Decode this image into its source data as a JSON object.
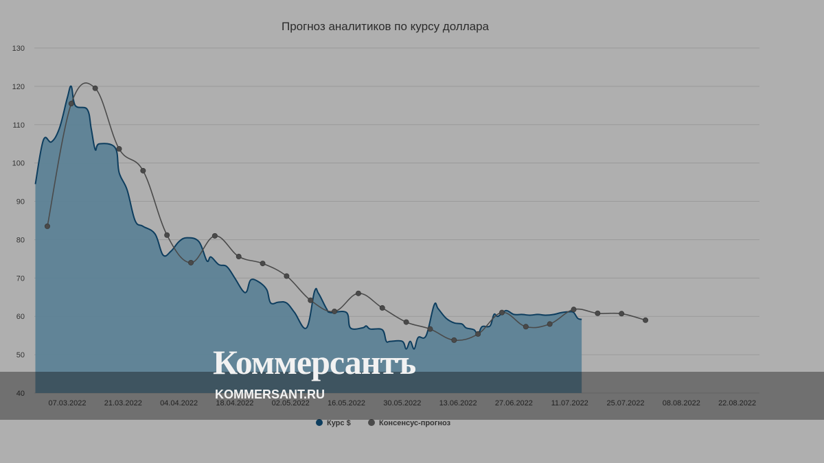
{
  "chart_data": {
    "type": "area",
    "title": "Прогноз аналитиков по курсу доллара",
    "ylim": [
      40,
      130
    ],
    "y_ticks": [
      "40",
      "50",
      "60",
      "70",
      "80",
      "90",
      "100",
      "110",
      "120",
      "130"
    ],
    "x_ticks": [
      "07.03.2022",
      "21.03.2022",
      "04.04.2022",
      "18.04.2022",
      "02.05.2022",
      "16.05.2022",
      "30.05.2022",
      "13.06.2022",
      "27.06.2022",
      "11.07.2022",
      "25.07.2022",
      "08.08.2022",
      "22.08.2022"
    ],
    "x_units": "days from 07.03.2022",
    "grid": true,
    "legend_position": "bottom",
    "series": [
      {
        "name": "Курс $",
        "kind": "area",
        "color": "#0d3d5e",
        "points": [
          [
            -8,
            94.5
          ],
          [
            -6,
            106
          ],
          [
            -4,
            105.5
          ],
          [
            -2,
            109
          ],
          [
            0,
            117
          ],
          [
            1,
            120
          ],
          [
            2,
            115
          ],
          [
            5,
            114
          ],
          [
            6,
            109
          ],
          [
            7,
            103.5
          ],
          [
            8,
            105
          ],
          [
            12,
            104
          ],
          [
            13,
            97.5
          ],
          [
            15,
            93
          ],
          [
            17,
            85
          ],
          [
            19,
            83.5
          ],
          [
            22,
            81.5
          ],
          [
            24,
            76
          ],
          [
            26,
            77
          ],
          [
            28,
            79.5
          ],
          [
            30,
            80.5
          ],
          [
            33,
            79.5
          ],
          [
            35,
            74.5
          ],
          [
            36,
            75.5
          ],
          [
            38,
            73.5
          ],
          [
            40,
            73
          ],
          [
            42,
            70
          ],
          [
            44,
            66.7
          ],
          [
            45,
            66.5
          ],
          [
            46,
            69.5
          ],
          [
            48,
            69
          ],
          [
            50,
            67
          ],
          [
            51,
            63.5
          ],
          [
            53,
            63.7
          ],
          [
            55,
            63.5
          ],
          [
            57,
            61
          ],
          [
            60,
            57
          ],
          [
            62,
            66.5
          ],
          [
            63,
            66
          ],
          [
            65,
            62
          ],
          [
            66,
            61
          ],
          [
            70,
            61
          ],
          [
            71,
            57
          ],
          [
            74,
            57
          ],
          [
            75,
            57.5
          ],
          [
            76,
            56.7
          ],
          [
            79,
            56.5
          ],
          [
            80,
            53.5
          ],
          [
            81,
            53.5
          ],
          [
            84,
            53.5
          ],
          [
            85,
            51.5
          ],
          [
            86,
            53.5
          ],
          [
            87,
            51.5
          ],
          [
            88,
            54.5
          ],
          [
            90,
            55
          ],
          [
            92,
            63
          ],
          [
            93,
            62
          ],
          [
            95,
            59.5
          ],
          [
            97,
            58.3
          ],
          [
            99,
            58
          ],
          [
            100,
            57
          ],
          [
            102,
            56.5
          ],
          [
            103,
            55.2
          ],
          [
            104,
            57.3
          ],
          [
            106,
            57.5
          ],
          [
            107,
            60.5
          ],
          [
            108,
            60
          ],
          [
            110,
            61.5
          ],
          [
            112,
            60.5
          ],
          [
            114,
            60.5
          ],
          [
            116,
            60.3
          ],
          [
            118,
            60.5
          ],
          [
            120,
            60.3
          ],
          [
            122,
            60.5
          ],
          [
            124,
            61
          ],
          [
            126,
            61.2
          ],
          [
            127,
            61
          ],
          [
            128,
            59.5
          ],
          [
            129,
            59.2
          ]
        ]
      },
      {
        "name": "Консенсус-прогноз",
        "kind": "line",
        "color": "#4a4a4a",
        "points": [
          [
            -5,
            83.5
          ],
          [
            1,
            115.5
          ],
          [
            7,
            119.5
          ],
          [
            13,
            103.7
          ],
          [
            19,
            98
          ],
          [
            25,
            81.2
          ],
          [
            31,
            74
          ],
          [
            37,
            81
          ],
          [
            43,
            75.6
          ],
          [
            49,
            73.8
          ],
          [
            55,
            70.5
          ],
          [
            61,
            64.2
          ],
          [
            67,
            61.3
          ],
          [
            73,
            66
          ],
          [
            79,
            62.2
          ],
          [
            85,
            58.5
          ],
          [
            91,
            56.7
          ],
          [
            97,
            53.8
          ],
          [
            103,
            55.4
          ],
          [
            109,
            61
          ],
          [
            115,
            57.3
          ],
          [
            121,
            58
          ],
          [
            127,
            61.8
          ],
          [
            133,
            60.8
          ],
          [
            139,
            60.7
          ],
          [
            145,
            59
          ]
        ]
      }
    ]
  },
  "legend": [
    {
      "label": "Курс $",
      "color": "#0d3d5e"
    },
    {
      "label": "Консенсус-прогноз",
      "color": "#4a4a4a"
    }
  ],
  "watermark": {
    "logo": "Коммерсантъ",
    "url": "KOMMERSANT.RU"
  }
}
